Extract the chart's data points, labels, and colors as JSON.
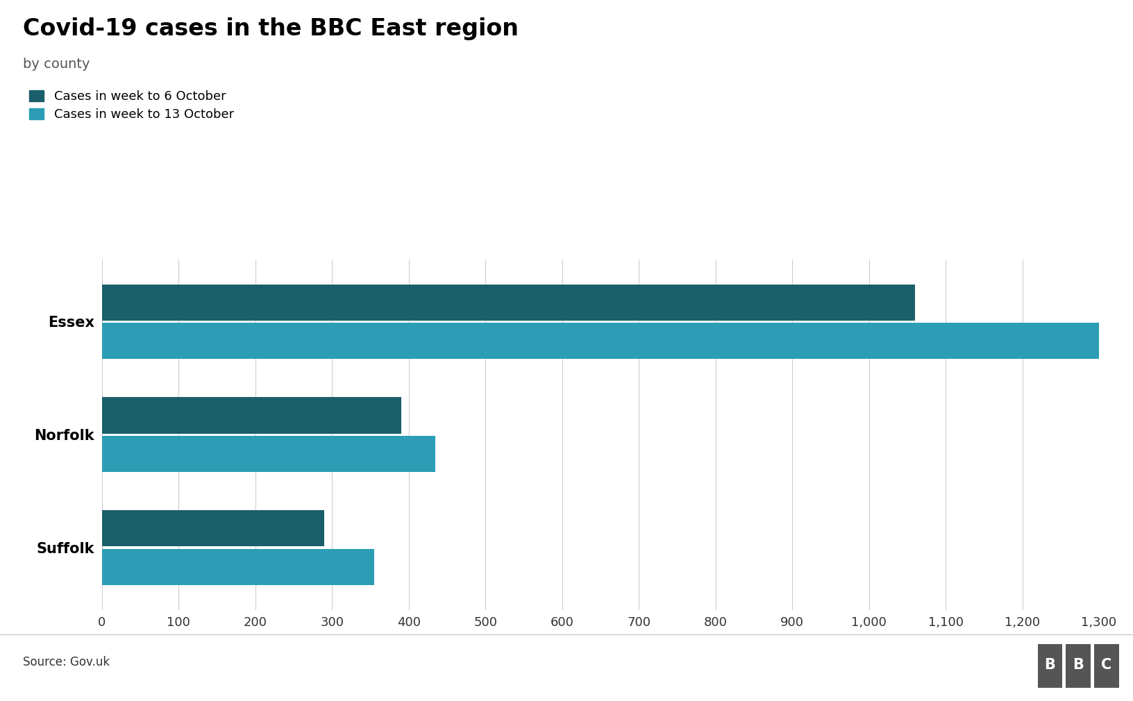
{
  "title": "Covid-19 cases in the BBC East region",
  "subtitle": "by county",
  "categories": [
    "Essex",
    "Norfolk",
    "Suffolk"
  ],
  "week6_oct": [
    1060,
    390,
    290
  ],
  "week13_oct": [
    1300,
    435,
    355
  ],
  "color_week6": "#1a5f6a",
  "color_week13": "#2b9db5",
  "legend_week6": "Cases in week to 6 October",
  "legend_week13": "Cases in week to 13 October",
  "xlim": [
    0,
    1300
  ],
  "xticks": [
    0,
    100,
    200,
    300,
    400,
    500,
    600,
    700,
    800,
    900,
    1000,
    1100,
    1200,
    1300
  ],
  "source": "Source: Gov.uk",
  "background_color": "#ffffff",
  "title_fontsize": 24,
  "subtitle_fontsize": 14,
  "tick_fontsize": 13,
  "ylabel_fontsize": 15
}
